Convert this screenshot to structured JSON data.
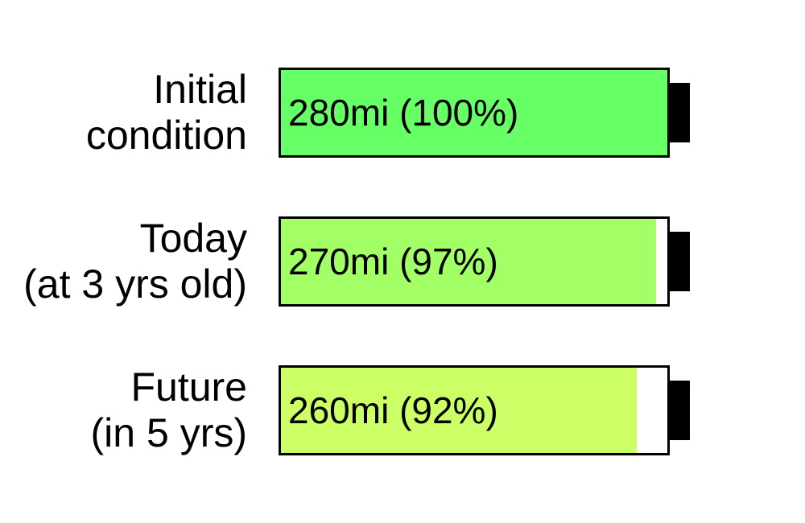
{
  "chart_data": {
    "type": "bar",
    "title": "",
    "xlabel": "",
    "ylabel": "",
    "categories": [
      [
        "Initial",
        "condition"
      ],
      [
        "Today",
        "(at 3 yrs old)"
      ],
      [
        "Future",
        "(in 5 yrs)"
      ]
    ],
    "values": [
      100,
      97,
      92
    ],
    "value_unit": "%",
    "ylim": [
      0,
      100
    ],
    "data_labels": [
      "280mi (100%)",
      "270mi (97%)",
      "260mi (92%)"
    ],
    "range_miles": [
      280,
      270,
      260
    ],
    "colors": [
      "#66ff66",
      "#a3ff66",
      "#ccff66"
    ],
    "grid": false,
    "legend": "none"
  }
}
